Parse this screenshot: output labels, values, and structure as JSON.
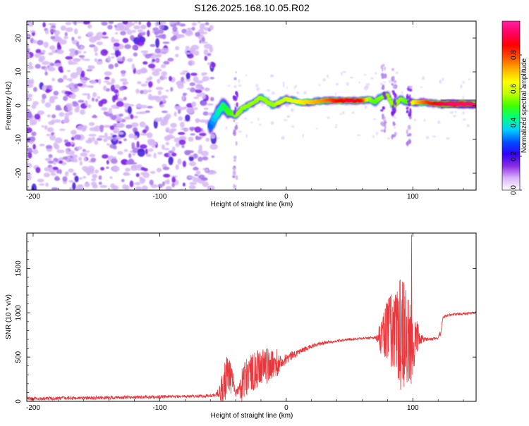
{
  "title": "S126.2025.168.10.05.R02",
  "chart_data": [
    {
      "type": "heatmap",
      "xlabel": "Height of straight line (km)",
      "ylabel": "Frequency (Hz)",
      "xlim": [
        -205,
        150
      ],
      "ylim": [
        -25,
        25
      ],
      "xticks": [
        -200,
        -100,
        0,
        100
      ],
      "yticks": [
        -20,
        -10,
        0,
        10,
        20
      ],
      "colorbar": {
        "label": "Normalized spectral amplitude",
        "range": [
          0,
          1
        ],
        "ticks": [
          0.0,
          0.2,
          0.4,
          0.6,
          0.8
        ],
        "tick_labels": [
          "0.0",
          "0.2",
          "0.4",
          "0.6",
          "0.8"
        ],
        "colors": [
          "#ffffff",
          "#d9b3ff",
          "#8a2be2",
          "#3000ff",
          "#0050ff",
          "#00d0ff",
          "#00ff80",
          "#40ff00",
          "#c0ff00",
          "#ffff00",
          "#ffb000",
          "#ff5000",
          "#ff0000",
          "#ff0060",
          "#ff20a0"
        ]
      },
      "noise_region_x": [
        -205,
        -57
      ],
      "signal_track": {
        "x": [
          -60,
          -57,
          -54,
          -50,
          -45,
          -40,
          -35,
          -30,
          -25,
          -20,
          -15,
          -10,
          -5,
          0,
          10,
          20,
          30,
          40,
          50,
          60,
          65,
          70,
          75,
          80,
          85,
          90,
          95,
          100,
          110,
          120,
          130,
          140,
          150
        ],
        "y": [
          -6,
          -4,
          -2,
          0,
          -2,
          -3,
          -1,
          0,
          1,
          2.5,
          1,
          0,
          1,
          2,
          1,
          1,
          1.5,
          1.5,
          1.5,
          1.5,
          2,
          1,
          2.5,
          3,
          0,
          2,
          1,
          1,
          1,
          0.5,
          0.5,
          0.5,
          0.5
        ],
        "amplitude": [
          0.3,
          0.35,
          0.4,
          0.45,
          0.5,
          0.55,
          0.55,
          0.55,
          0.55,
          0.55,
          0.55,
          0.55,
          0.6,
          0.6,
          0.65,
          0.7,
          0.75,
          0.85,
          0.9,
          0.85,
          0.55,
          0.5,
          0.55,
          0.55,
          0.55,
          0.55,
          0.5,
          0.65,
          0.8,
          0.9,
          0.95,
          0.95,
          0.95
        ]
      },
      "spurs": [
        {
          "x": -40,
          "y_range": [
            -25,
            10
          ]
        },
        {
          "x": 77,
          "y_range": [
            -8,
            12
          ]
        },
        {
          "x": 85,
          "y_range": [
            -10,
            11
          ]
        },
        {
          "x": 97,
          "y_range": [
            -12,
            8
          ]
        }
      ]
    },
    {
      "type": "line",
      "xlabel": "Height of straight line (km)",
      "ylabel": "SNR (10 * v/v)",
      "xlim": [
        -205,
        150
      ],
      "ylim": [
        0,
        1900
      ],
      "xticks": [
        -200,
        -100,
        0,
        100
      ],
      "yticks": [
        0,
        500,
        1000,
        1500
      ],
      "color": "#e8383d",
      "envelope": {
        "x": [
          -205,
          -150,
          -100,
          -65,
          -57,
          -52,
          -48,
          -45,
          -42,
          -40,
          -35,
          -30,
          -25,
          -20,
          -15,
          -10,
          -5,
          0,
          5,
          10,
          20,
          30,
          40,
          50,
          60,
          70,
          72,
          75,
          80,
          85,
          90,
          95,
          97,
          100,
          105,
          110,
          120,
          122,
          124,
          130,
          140,
          150
        ],
        "mean": [
          30,
          40,
          50,
          60,
          70,
          120,
          250,
          280,
          200,
          80,
          200,
          300,
          350,
          380,
          400,
          420,
          450,
          480,
          520,
          560,
          620,
          660,
          680,
          700,
          710,
          720,
          700,
          720,
          800,
          800,
          780,
          700,
          650,
          700,
          700,
          700,
          710,
          780,
          950,
          980,
          990,
          1000
        ],
        "spread": [
          40,
          40,
          35,
          35,
          40,
          150,
          250,
          220,
          150,
          60,
          200,
          220,
          220,
          200,
          200,
          180,
          150,
          120,
          100,
          70,
          50,
          40,
          30,
          25,
          25,
          30,
          120,
          200,
          350,
          500,
          650,
          650,
          500,
          350,
          150,
          40,
          20,
          80,
          40,
          30,
          30,
          30
        ]
      },
      "max_peak": {
        "x": 99,
        "y": 1880
      }
    }
  ]
}
